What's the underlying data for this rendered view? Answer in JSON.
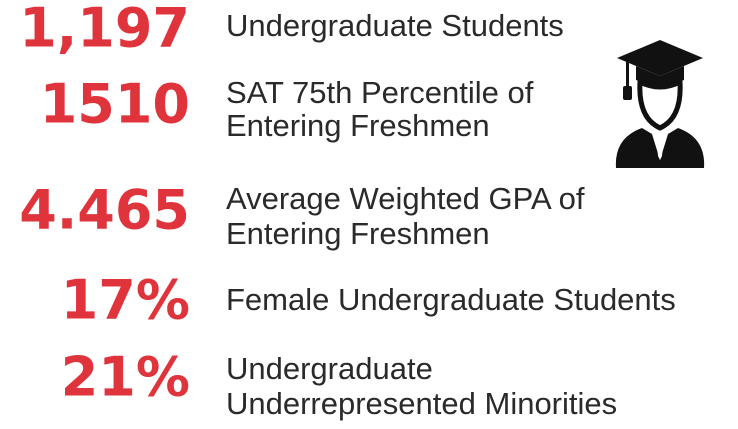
{
  "stats": [
    {
      "value": "1,197",
      "lines": [
        "Undergraduate Students"
      ]
    },
    {
      "value": "1510",
      "lines": [
        "SAT 75th Percentile of",
        "Entering Freshmen"
      ]
    },
    {
      "value": "4.465",
      "lines": [
        "Average Weighted GPA of",
        "Entering Freshmen"
      ]
    },
    {
      "value": "17%",
      "lines": [
        "Female Undergraduate Students"
      ]
    },
    {
      "value": "21%",
      "lines": [
        "Undergraduate",
        "Underrepresented Minorities"
      ]
    }
  ]
}
